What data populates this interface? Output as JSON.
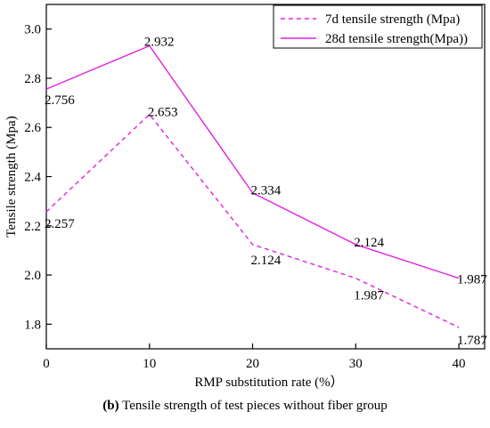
{
  "chart_data": {
    "type": "line",
    "title": "",
    "xlabel": "RMP substitution rate (%）",
    "ylabel": "Tensile strength (Mpa)",
    "x": [
      0,
      10,
      20,
      30,
      40
    ],
    "x_ticks": [
      "0",
      "10",
      "20",
      "30",
      "40"
    ],
    "y_ticks": [
      "1.8",
      "2.0",
      "2.2",
      "2.4",
      "2.6",
      "2.8",
      "3.0"
    ],
    "xlim": [
      0,
      42.5
    ],
    "ylim": [
      1.7,
      3.1
    ],
    "grid": false,
    "legend_position": "top-right",
    "series": [
      {
        "name": "7d tensile strength (Mpa)",
        "values": [
          2.257,
          2.653,
          2.124,
          1.987,
          1.787
        ],
        "labels": [
          "2.257",
          "2.653",
          "2.124",
          "1.987",
          "1.787"
        ],
        "color": "#e020e0",
        "line_style": "dashed"
      },
      {
        "name": "28d tensile strength(Mpa))",
        "values": [
          2.756,
          2.932,
          2.334,
          2.124,
          1.987
        ],
        "labels": [
          "2.756",
          "2.932",
          "2.334",
          "2.124",
          "1.987"
        ],
        "color": "#e020e0",
        "line_style": "solid"
      }
    ]
  },
  "caption": {
    "label": "(b)",
    "text": " Tensile strength of test pieces without fiber group"
  }
}
